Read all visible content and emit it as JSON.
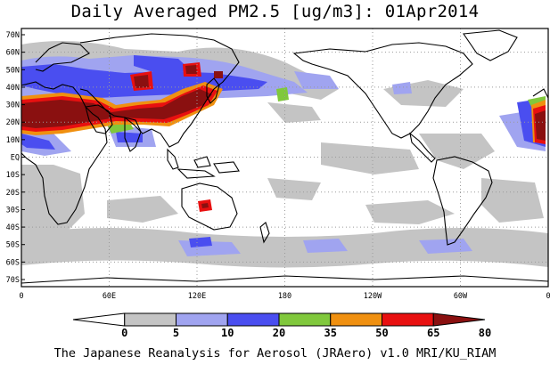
{
  "title": "Daily Averaged PM2.5 [ug/m3]: 01Apr2014",
  "footer": "The Japanese Reanalysis for Aerosol (JRAero) v1.0 MRI/KU_RIAM",
  "map": {
    "lat_labels": [
      "70N",
      "60N",
      "50N",
      "40N",
      "30N",
      "20N",
      "10N",
      "EQ",
      "10S",
      "20S",
      "30S",
      "40S",
      "50S",
      "60S",
      "70S"
    ],
    "lon_labels": [
      "0",
      "60E",
      "120E",
      "180",
      "120W",
      "60W",
      "0"
    ]
  },
  "legend": {
    "ticks": [
      "0",
      "5",
      "10",
      "20",
      "35",
      "50",
      "65",
      "80"
    ],
    "colors": [
      "#ffffff",
      "#c4c4c4",
      "#a0a4f0",
      "#4a4ef0",
      "#80c83c",
      "#f09010",
      "#e81010",
      "#8a1010"
    ]
  },
  "colors": {
    "ocean": "#ffffff",
    "coast": "#000000",
    "grid": "#9a9a9a"
  }
}
